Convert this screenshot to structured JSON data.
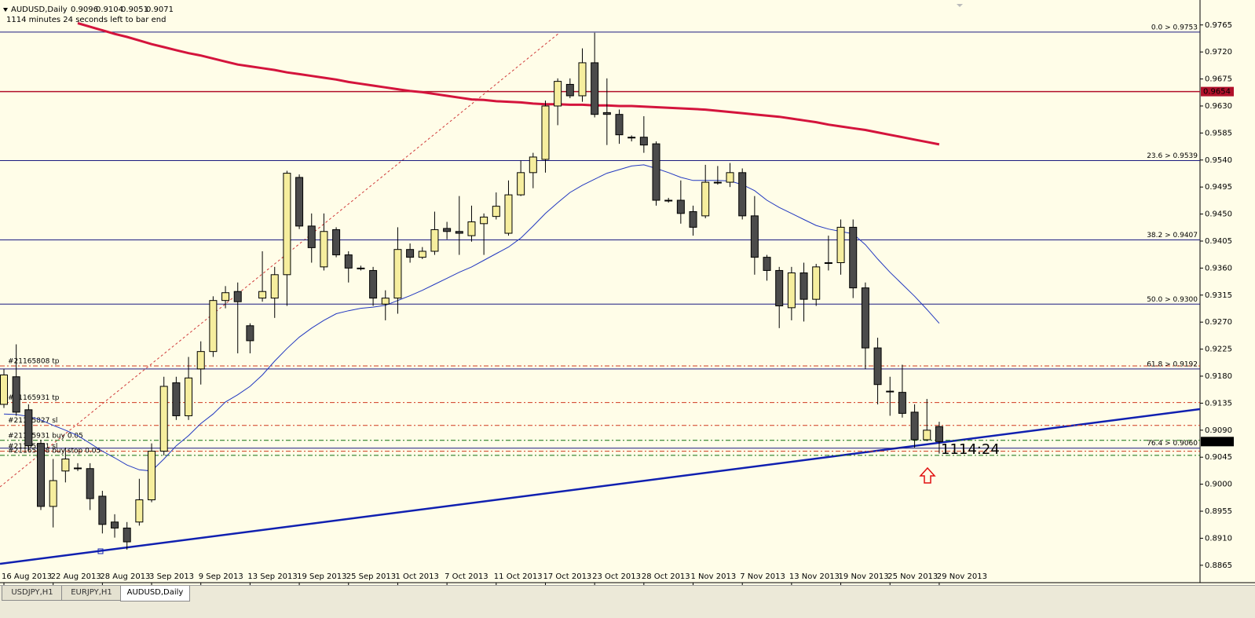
{
  "chart_data": {
    "type": "candlestick",
    "symbol": "AUDUSD,Daily",
    "countdown": "1114 minutes 24 seconds left to bar end",
    "timer_label": "1114:24",
    "ylim": [
      0.8836,
      0.98
    ],
    "yticks": [
      0.9765,
      {
        "value": 0.972,
        "label": "0.9720"
      },
      0.9675,
      {
        "value": 0.963,
        "label": "0.9630"
      },
      0.9585,
      {
        "value": 0.954,
        "label": "0.9540"
      },
      0.9495,
      {
        "value": 0.945,
        "label": "0.9450"
      },
      0.9405,
      {
        "value": 0.936,
        "label": "0.9360"
      },
      0.9315,
      {
        "value": 0.927,
        "label": "0.9270"
      },
      0.9225,
      {
        "value": 0.918,
        "label": "0.9180"
      },
      0.9135,
      {
        "value": 0.909,
        "label": "0.9090"
      },
      0.9045,
      {
        "value": 0.9,
        "label": "0.9000"
      },
      0.8955,
      {
        "value": 0.891,
        "label": "0.8910"
      },
      0.8865
    ],
    "categories": [
      "16 Aug 2013",
      null,
      null,
      null,
      "22 Aug 2013",
      null,
      null,
      null,
      "28 Aug 2013",
      null,
      null,
      null,
      "3 Sep 2013",
      null,
      null,
      null,
      "9 Sep 2013",
      null,
      null,
      null,
      "13 Sep 2013",
      null,
      null,
      null,
      "19 Sep 2013",
      null,
      null,
      null,
      "25 Sep 2013",
      null,
      null,
      null,
      "1 Oct 2013",
      null,
      null,
      null,
      "7 Oct 2013",
      null,
      null,
      null,
      "11 Oct 2013",
      null,
      null,
      null,
      "17 Oct 2013",
      null,
      null,
      null,
      "23 Oct 2013",
      null,
      null,
      null,
      "28 Oct 2013",
      null,
      null,
      null,
      "1 Nov 2013",
      null,
      null,
      null,
      "7 Nov 2013",
      null,
      null,
      null,
      "13 Nov 2013",
      null,
      null,
      null,
      "19 Nov 2013",
      null,
      null,
      null,
      "25 Nov 2013",
      null,
      null,
      null,
      "29 Nov 2013"
    ],
    "candles": {
      "up_color": "#f6ee9e",
      "down_color": "#4b4b4b",
      "values": [
        [
          0.9133,
          0.9192,
          0.9127,
          0.9182
        ],
        [
          0.9179,
          0.9233,
          0.9114,
          0.912
        ],
        [
          0.9124,
          0.9133,
          0.9055,
          0.9064
        ],
        [
          0.9068,
          0.9074,
          0.8957,
          0.8963
        ],
        [
          0.8963,
          0.9042,
          0.8928,
          0.9006
        ],
        [
          0.9022,
          0.9061,
          0.9003,
          0.9042
        ],
        [
          0.9027,
          0.9035,
          0.9022,
          0.9027
        ],
        [
          0.9026,
          0.9035,
          0.8957,
          0.8976
        ],
        [
          0.898,
          0.8989,
          0.8918,
          0.8933
        ],
        [
          0.8937,
          0.895,
          0.8911,
          0.8927
        ],
        [
          0.8927,
          0.8937,
          0.8891,
          0.8904
        ],
        [
          0.8937,
          0.9009,
          0.8931,
          0.8974
        ],
        [
          0.8974,
          0.9068,
          0.897,
          0.9055
        ],
        [
          0.9055,
          0.9179,
          0.9048,
          0.9163
        ],
        [
          0.9169,
          0.9179,
          0.9107,
          0.9114
        ],
        [
          0.9114,
          0.9212,
          0.9107,
          0.9177
        ],
        [
          0.9192,
          0.9238,
          0.9166,
          0.9221
        ],
        [
          0.9221,
          0.9313,
          0.9212,
          0.9306
        ],
        [
          0.9306,
          0.933,
          0.9293,
          0.9319
        ],
        [
          0.9321,
          0.9336,
          0.9218,
          0.9304
        ],
        [
          0.9264,
          0.9268,
          0.9218,
          0.9239
        ],
        [
          0.931,
          0.9388,
          0.9304,
          0.9321
        ],
        [
          0.931,
          0.9362,
          0.9277,
          0.9349
        ],
        [
          0.9349,
          0.9522,
          0.9297,
          0.9518
        ],
        [
          0.9511,
          0.9516,
          0.9425,
          0.943
        ],
        [
          0.943,
          0.9451,
          0.9369,
          0.9394
        ],
        [
          0.9362,
          0.9451,
          0.9356,
          0.9421
        ],
        [
          0.9424,
          0.9428,
          0.9378,
          0.9382
        ],
        [
          0.9382,
          0.9388,
          0.9336,
          0.936
        ],
        [
          0.936,
          0.9364,
          0.9356,
          0.936
        ],
        [
          0.9356,
          0.9362,
          0.9297,
          0.931
        ],
        [
          0.93,
          0.9323,
          0.9273,
          0.931
        ],
        [
          0.931,
          0.9428,
          0.9284,
          0.9391
        ],
        [
          0.9391,
          0.9401,
          0.9369,
          0.9378
        ],
        [
          0.9378,
          0.9395,
          0.9375,
          0.9388
        ],
        [
          0.9388,
          0.9454,
          0.9382,
          0.9424
        ],
        [
          0.9426,
          0.9437,
          0.9408,
          0.9421
        ],
        [
          0.9421,
          0.948,
          0.9382,
          0.9418
        ],
        [
          0.9414,
          0.9464,
          0.9404,
          0.9437
        ],
        [
          0.9434,
          0.9451,
          0.9382,
          0.9445
        ],
        [
          0.9446,
          0.9486,
          0.9441,
          0.9463
        ],
        [
          0.9418,
          0.9506,
          0.9414,
          0.9482
        ],
        [
          0.9482,
          0.9539,
          0.948,
          0.9519
        ],
        [
          0.9519,
          0.9552,
          0.9493,
          0.9545
        ],
        [
          0.9541,
          0.9639,
          0.9519,
          0.963
        ],
        [
          0.963,
          0.9676,
          0.9598,
          0.9671
        ],
        [
          0.9666,
          0.9676,
          0.9643,
          0.9647
        ],
        [
          0.9647,
          0.9726,
          0.9637,
          0.9702
        ],
        [
          0.9702,
          0.9752,
          0.9611,
          0.9616
        ],
        [
          0.9619,
          0.9676,
          0.9565,
          0.9616
        ],
        [
          0.9616,
          0.9624,
          0.9567,
          0.9582
        ],
        [
          0.9578,
          0.9581,
          0.9571,
          0.9578
        ],
        [
          0.9578,
          0.9613,
          0.9552,
          0.9565
        ],
        [
          0.9567,
          0.9571,
          0.9464,
          0.9473
        ],
        [
          0.9473,
          0.9477,
          0.9469,
          0.9473
        ],
        [
          0.9473,
          0.9506,
          0.9434,
          0.9451
        ],
        [
          0.9454,
          0.9464,
          0.9414,
          0.9428
        ],
        [
          0.9447,
          0.9532,
          0.9443,
          0.9503
        ],
        [
          0.9503,
          0.953,
          0.9499,
          0.9503
        ],
        [
          0.9503,
          0.9535,
          0.9495,
          0.9519
        ],
        [
          0.9519,
          0.9526,
          0.9441,
          0.9447
        ],
        [
          0.9447,
          0.948,
          0.9349,
          0.9378
        ],
        [
          0.9378,
          0.9382,
          0.9339,
          0.9356
        ],
        [
          0.9356,
          0.9362,
          0.926,
          0.9297
        ],
        [
          0.9294,
          0.9362,
          0.9273,
          0.9352
        ],
        [
          0.9352,
          0.9369,
          0.9271,
          0.9308
        ],
        [
          0.9308,
          0.9367,
          0.9297,
          0.9362
        ],
        [
          0.9369,
          0.9414,
          0.9356,
          0.9369
        ],
        [
          0.9369,
          0.9441,
          0.9349,
          0.9428
        ],
        [
          0.9428,
          0.9441,
          0.931,
          0.9327
        ],
        [
          0.9327,
          0.9336,
          0.9192,
          0.9227
        ],
        [
          0.9227,
          0.9244,
          0.9133,
          0.9166
        ],
        [
          0.9155,
          0.9179,
          0.9114,
          0.9155
        ],
        [
          0.9153,
          0.9199,
          0.9111,
          0.9118
        ],
        [
          0.912,
          0.9133,
          0.9061,
          0.9074
        ],
        [
          0.9074,
          0.9142,
          0.9072,
          0.909
        ],
        [
          0.9096,
          0.9104,
          0.9051,
          0.9071
        ]
      ]
    },
    "indicators": [
      {
        "color": "#d4143c",
        "width": 3,
        "values": [
          null,
          null,
          null,
          null,
          null,
          null,
          0.9768,
          0.9762,
          0.9756,
          0.975,
          0.9745,
          0.9739,
          0.9733,
          0.9728,
          0.9723,
          0.9718,
          0.9714,
          0.9709,
          0.9704,
          0.9699,
          0.9696,
          0.9693,
          0.969,
          0.9686,
          0.9683,
          0.968,
          0.9677,
          0.9674,
          0.967,
          0.9667,
          0.9664,
          0.9661,
          0.9658,
          0.9655,
          0.9653,
          0.965,
          0.9647,
          0.9644,
          0.9641,
          0.964,
          0.9638,
          0.9637,
          0.9636,
          0.9634,
          0.9633,
          0.9633,
          0.9632,
          0.9632,
          0.9631,
          0.9631,
          0.963,
          0.963,
          0.9629,
          0.9628,
          0.9627,
          0.9626,
          0.9625,
          0.9624,
          0.9622,
          0.962,
          0.9618,
          0.9616,
          0.9614,
          0.9612,
          0.9609,
          0.9606,
          0.9603,
          0.9599,
          0.9596,
          0.9593,
          0.959,
          0.9586,
          0.9582,
          0.9578,
          0.9574,
          0.957,
          0.9566
        ]
      },
      {
        "color": "#2238c0",
        "width": 1,
        "values": [
          0.9117,
          0.9116,
          0.9113,
          0.9107,
          0.9098,
          0.909,
          0.9081,
          0.9068,
          0.9055,
          0.9044,
          0.9032,
          0.9024,
          0.9022,
          0.9042,
          0.9064,
          0.9081,
          0.9101,
          0.9117,
          0.9137,
          0.9149,
          0.9163,
          0.9182,
          0.9205,
          0.9226,
          0.9245,
          0.926,
          0.9273,
          0.9284,
          0.9289,
          0.9293,
          0.9295,
          0.9298,
          0.9306,
          0.9314,
          0.9323,
          0.9333,
          0.9343,
          0.9353,
          0.9362,
          0.9373,
          0.9384,
          0.9395,
          0.941,
          0.943,
          0.9451,
          0.9469,
          0.9486,
          0.9498,
          0.9508,
          0.9518,
          0.9524,
          0.953,
          0.9532,
          0.9526,
          0.9519,
          0.9511,
          0.9506,
          0.9506,
          0.9506,
          0.9505,
          0.9499,
          0.9489,
          0.9473,
          0.9461,
          0.9451,
          0.9441,
          0.9431,
          0.9425,
          0.9421,
          0.9417,
          0.9399,
          0.9375,
          0.9353,
          0.9333,
          0.9313,
          0.9291,
          0.9268
        ]
      }
    ],
    "hlines": [
      {
        "value": 0.9654,
        "color": "#b0102a"
      }
    ],
    "fibo": {
      "color": "#1a1a80",
      "text_color": "#3a2a8a",
      "levels": [
        {
          "value": 0.9753,
          "label": "0.0 > 0.9753"
        },
        {
          "value": 0.9539,
          "label": "23.6 > 0.9539"
        },
        {
          "value": 0.9407,
          "label": "38.2 > 0.9407"
        },
        {
          "value": 0.93,
          "label": "50.0 > 0.9300"
        },
        {
          "value": 0.9192,
          "label": "61.8 > 0.9192"
        },
        {
          "value": 0.906,
          "label": "76.4 > 0.9060"
        }
      ]
    },
    "orders": [
      {
        "label": "#21165808 tp",
        "value": 0.9197,
        "color": "#d03a20"
      },
      {
        "label": "#21165931 tp",
        "value": 0.9136,
        "color": "#d03a20"
      },
      {
        "label": "#21165827 sl",
        "value": 0.9098,
        "color": "#d03a20"
      },
      {
        "label": "#21165931 buy 0.05",
        "value": 0.9073,
        "color": "#107010"
      },
      {
        "label": "#21165931 sl",
        "value": 0.9055,
        "color": "#d03a20"
      },
      {
        "label": "#21165808 buy stop 0.05",
        "value": 0.9048,
        "color": "#107010"
      }
    ],
    "tabs": [
      "USDJPY,H1",
      "EURJPY,H1",
      "AUDUSD,Daily"
    ],
    "active_tab": 2
  }
}
